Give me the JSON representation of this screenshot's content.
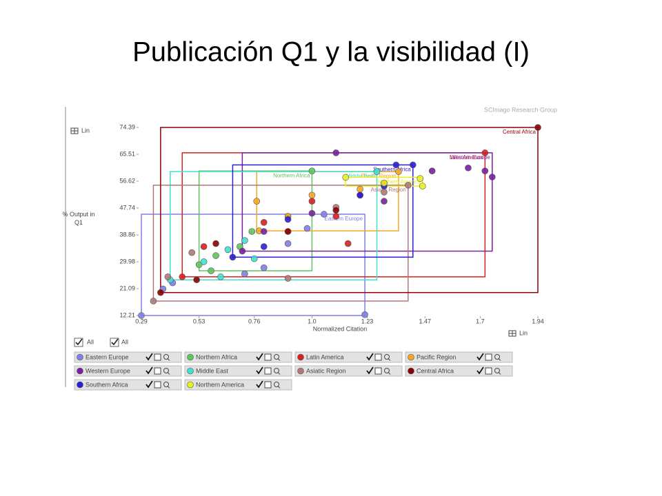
{
  "title": "Publicación Q1 y la visibilidad (I)",
  "chart_data": {
    "type": "scatter",
    "source": "SCImago Research Group",
    "x_label": "Normalized Citation",
    "y_label": "% Output in Q1",
    "x_scale_label": "Lin",
    "y_scale_label": "Lin",
    "select_all_labels": [
      "All",
      "All"
    ],
    "xlim": [
      0.29,
      1.94
    ],
    "ylim": [
      12.21,
      74.39
    ],
    "xticks": [
      0.29,
      0.53,
      0.76,
      {
        "value": 1,
        "label": "1.0"
      },
      1.23,
      1.47,
      1.7,
      1.94
    ],
    "yticks": [
      12.21,
      21.09,
      29.98,
      38.86,
      47.74,
      56.62,
      65.51,
      74.39
    ],
    "series": [
      {
        "name": "Eastern Europe",
        "color": "#7f7fe6",
        "x": [
          0.29,
          1.22,
          0.38,
          0.42,
          0.72,
          0.8,
          0.9,
          0.98,
          1.05
        ],
        "values": [
          12.21,
          12.5,
          21,
          23,
          26,
          28,
          36,
          41,
          45.7
        ]
      },
      {
        "name": "Northern Africa",
        "color": "#5ec45e",
        "x": [
          0.53,
          0.6,
          0.58,
          1.0,
          0.75,
          0.7,
          0.9
        ],
        "values": [
          29,
          32,
          27,
          60,
          40,
          35,
          45
        ]
      },
      {
        "name": "Latin America",
        "color": "#d62020",
        "x": [
          0.46,
          1.72,
          0.55,
          0.8,
          1.0,
          1.1,
          1.2,
          1.3,
          1.15
        ],
        "values": [
          25,
          66,
          35,
          43,
          50,
          45,
          52,
          56,
          36
        ]
      },
      {
        "name": "Pacific Region",
        "color": "#f5a623",
        "x": [
          0.78,
          1.36,
          0.9,
          1.0,
          1.2,
          0.77
        ],
        "values": [
          40.2,
          59.8,
          45,
          52,
          54,
          50
        ]
      },
      {
        "name": "Western Europe",
        "color": "#7a1fa2",
        "x": [
          0.71,
          1.75,
          1.1,
          1.5,
          1.65,
          1.72,
          0.8,
          1.0,
          1.3
        ],
        "values": [
          33.5,
          58,
          66,
          60,
          61,
          60,
          40,
          46,
          50
        ]
      },
      {
        "name": "Middle East",
        "color": "#40e0d0",
        "x": [
          0.41,
          1.27,
          0.55,
          0.65,
          0.72,
          0.62,
          0.76
        ],
        "values": [
          24,
          59.8,
          30,
          34,
          37,
          25,
          31
        ]
      },
      {
        "name": "Asiatic Region",
        "color": "#b07878",
        "x": [
          0.34,
          1.4,
          0.4,
          0.5,
          0.9,
          1.1,
          1.3,
          0.9
        ],
        "values": [
          17,
          55.3,
          25,
          33,
          40,
          48,
          53,
          24.5
        ]
      },
      {
        "name": "Central Africa",
        "color": "#8b0000",
        "x": [
          0.37,
          1.94,
          0.52,
          0.9,
          1.1,
          0.6
        ],
        "values": [
          19.8,
          74.39,
          24,
          40,
          47,
          36
        ]
      },
      {
        "name": "Southern Africa",
        "color": "#2a1fd6",
        "x": [
          0.67,
          1.42,
          1.2,
          0.9,
          0.8,
          1.3,
          1.35
        ],
        "values": [
          31.5,
          62,
          52,
          44,
          35,
          55,
          62
        ]
      },
      {
        "name": "Northern America",
        "color": "#e8f020",
        "x": [
          1.14,
          1.46,
          1.3,
          1.45
        ],
        "values": [
          57.9,
          55,
          56,
          57.5
        ]
      }
    ]
  }
}
